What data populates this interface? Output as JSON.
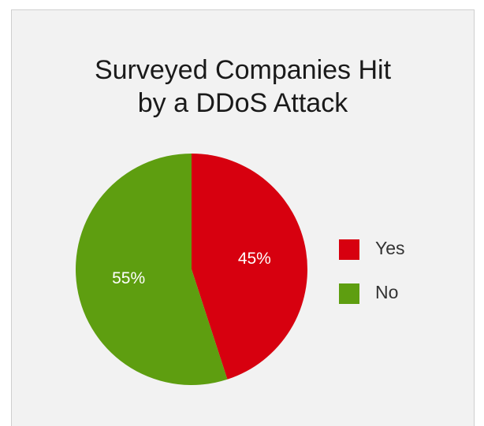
{
  "chart_data": {
    "type": "pie",
    "title_lines": [
      "Surveyed Companies Hit",
      "by a DDoS Attack"
    ],
    "slices": [
      {
        "label": "Yes",
        "value": 45,
        "display": "45%",
        "color": "#d7000f"
      },
      {
        "label": "No",
        "value": 55,
        "display": "55%",
        "color": "#5e9e10"
      }
    ],
    "legend_position": "right",
    "start_angle": "12 o'clock",
    "direction": "clockwise"
  },
  "colors": {
    "background": "#f2f2f2",
    "border": "#cfcfcf"
  }
}
